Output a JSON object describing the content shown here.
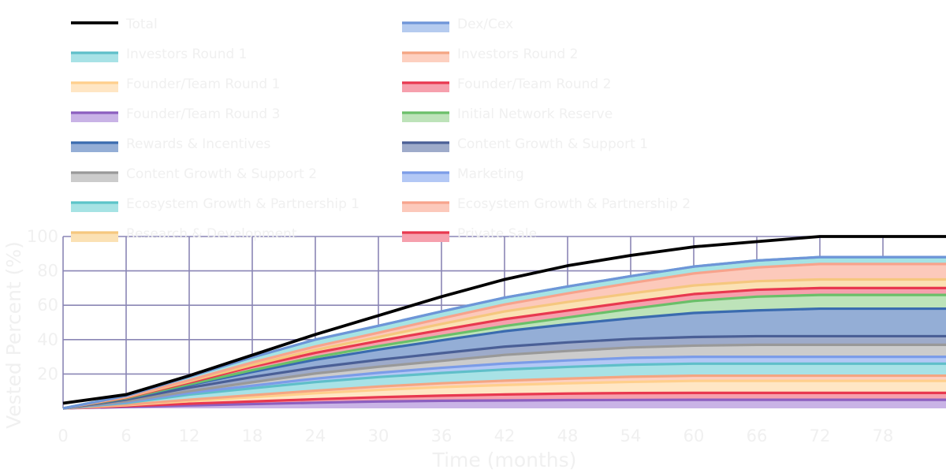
{
  "chart_data": {
    "type": "area",
    "stacked": true,
    "title": "",
    "xlabel": "Time (months)",
    "ylabel": "Vested Percent (%)",
    "xlim": [
      0,
      84
    ],
    "ylim": [
      0,
      100
    ],
    "x_ticks": [
      0,
      6,
      12,
      18,
      24,
      30,
      36,
      42,
      48,
      54,
      60,
      66,
      72,
      78
    ],
    "y_ticks": [
      20,
      40,
      60,
      80,
      100
    ],
    "grid": true,
    "grid_color": "#8a86b5",
    "legend_placement": "top, two columns",
    "x": [
      0,
      6,
      12,
      18,
      24,
      30,
      36,
      42,
      48,
      54,
      60,
      66,
      72,
      78,
      84
    ],
    "total": {
      "name": "Total",
      "color": "#000000",
      "values": [
        3,
        8,
        19,
        31,
        43,
        54,
        65,
        75,
        83,
        89,
        94,
        97,
        100,
        100,
        100
      ]
    },
    "series": [
      {
        "name": "Founder/Team Round 3",
        "line": "#8c5fbf",
        "fill": "#c9b3e6",
        "values": [
          0,
          0.8,
          1.7,
          2.5,
          3.3,
          4,
          4.4,
          4.6,
          4.8,
          4.9,
          5,
          5,
          5,
          5,
          5
        ]
      },
      {
        "name": "Founder/Team Round 2",
        "line": "#e8384f",
        "fill": "#f6a0ad",
        "values": [
          0,
          0.5,
          1,
          1.5,
          2,
          2.5,
          3,
          3.5,
          3.8,
          4,
          4,
          4,
          4,
          4,
          4
        ]
      },
      {
        "name": "Founder/Team Round 1",
        "line": "#ffcf8c",
        "fill": "#ffe6c4",
        "values": [
          0,
          0.5,
          1.5,
          2.5,
          3.5,
          4.2,
          5,
          5.5,
          6,
          6.5,
          7,
          7,
          7,
          7,
          7
        ]
      },
      {
        "name": "Investors Round 2",
        "line": "#f4a582",
        "fill": "#fdd0c0",
        "values": [
          0,
          0.3,
          0.8,
          1.2,
          1.5,
          2,
          2.2,
          2.5,
          2.7,
          3,
          3,
          3,
          3,
          3,
          3
        ]
      },
      {
        "name": "Investors Round 1",
        "line": "#5fbfc9",
        "fill": "#a8e2e6",
        "values": [
          0,
          1,
          3,
          4,
          5,
          5.5,
          6,
          6.5,
          6.8,
          7,
          7,
          7,
          7,
          7,
          7
        ]
      },
      {
        "name": "Marketing",
        "line": "#7b9ce8",
        "fill": "#b3c8f5",
        "values": [
          0,
          0.5,
          1,
          1.5,
          2,
          2.5,
          3,
          3.5,
          3.8,
          4,
          4,
          4,
          4,
          4,
          4
        ]
      },
      {
        "name": "Content Growth & Support 2",
        "line": "#999999",
        "fill": "#cccccc",
        "values": [
          0,
          0.5,
          1,
          2,
          3,
          3.5,
          4,
          5,
          5.5,
          6,
          6.5,
          7,
          7,
          7,
          7
        ]
      },
      {
        "name": "Content Growth & Support 1",
        "line": "#4a5f96",
        "fill": "#9eabca",
        "values": [
          0,
          1,
          2,
          3,
          3.5,
          4,
          4.5,
          4.8,
          5,
          5,
          5,
          5,
          5,
          5,
          5
        ]
      },
      {
        "name": "Rewards & Incentives",
        "line": "#3a6baf",
        "fill": "#94aed6",
        "values": [
          0,
          0.6,
          1.5,
          3,
          4.5,
          6,
          7.5,
          9,
          10.5,
          12,
          14,
          15,
          16,
          16,
          16
        ]
      },
      {
        "name": "Initial Network Reserve",
        "line": "#6abf69",
        "fill": "#bde3b9",
        "values": [
          0,
          0.2,
          0.5,
          1,
          1.5,
          2,
          2.5,
          3,
          4,
          5.5,
          7,
          8,
          8,
          8,
          8
        ]
      },
      {
        "name": "Private Sale",
        "line": "#e8384f",
        "fill": "#f6a0ad",
        "values": [
          0,
          0.3,
          1,
          2,
          2.5,
          3,
          3.5,
          4,
          4,
          4,
          4,
          4,
          4,
          4,
          4
        ]
      },
      {
        "name": "Research & Development",
        "line": "#f5c77e",
        "fill": "#fbe1b4",
        "values": [
          0,
          0.3,
          0.7,
          1,
          1.7,
          2.3,
          3.5,
          4.5,
          5,
          5,
          5,
          5,
          5,
          5,
          5
        ]
      },
      {
        "name": "Ecosystem Growth & Partnership 2",
        "line": "#f7a38c",
        "fill": "#fcc9bb",
        "values": [
          0,
          0.3,
          0.7,
          1.5,
          2,
          2.5,
          3.3,
          4,
          5,
          6,
          7,
          8,
          9,
          9,
          9
        ]
      },
      {
        "name": "Ecosystem Growth & Partnership 1",
        "line": "#5bc4c8",
        "fill": "#a6e3e4",
        "values": [
          0,
          0.5,
          2,
          3,
          4,
          4,
          4,
          4,
          4,
          4,
          4,
          4,
          4,
          4,
          4
        ]
      },
      {
        "name": "Dex/Cex",
        "line": "#6e95d8",
        "fill": "#b5cbef",
        "values": [
          0,
          0,
          0,
          0,
          0,
          0,
          0,
          0,
          0,
          0,
          0,
          0,
          0,
          0,
          0
        ]
      }
    ],
    "legend": [
      {
        "name": "Total",
        "line": "#000000",
        "fill": ""
      },
      {
        "name": "Dex/Cex",
        "line": "#6e95d8",
        "fill": "#b5cbef"
      },
      {
        "name": "Investors Round 1",
        "line": "#5fbfc9",
        "fill": "#a8e2e6"
      },
      {
        "name": "Investors Round 2",
        "line": "#f4a582",
        "fill": "#fdd0c0"
      },
      {
        "name": "Founder/Team Round 1",
        "line": "#ffcf8c",
        "fill": "#ffe6c4"
      },
      {
        "name": "Founder/Team Round 2",
        "line": "#e8384f",
        "fill": "#f6a0ad"
      },
      {
        "name": "Founder/Team Round 3",
        "line": "#8c5fbf",
        "fill": "#c9b3e6"
      },
      {
        "name": "Initial Network Reserve",
        "line": "#6abf69",
        "fill": "#bde3b9"
      },
      {
        "name": "Rewards & Incentives",
        "line": "#3a6baf",
        "fill": "#94aed6"
      },
      {
        "name": "Content Growth & Support 1",
        "line": "#4a5f96",
        "fill": "#9eabca"
      },
      {
        "name": "Content Growth & Support 2",
        "line": "#999999",
        "fill": "#cccccc"
      },
      {
        "name": "Marketing",
        "line": "#7b9ce8",
        "fill": "#b3c8f5"
      },
      {
        "name": "Ecosystem Growth & Partnership 1",
        "line": "#5bc4c8",
        "fill": "#a6e3e4"
      },
      {
        "name": "Ecosystem Growth & Partnership 2",
        "line": "#f7a38c",
        "fill": "#fcc9bb"
      },
      {
        "name": "Research & Development",
        "line": "#f5c77e",
        "fill": "#fbe1b4"
      },
      {
        "name": "Private Sale",
        "line": "#e8384f",
        "fill": "#f6a0ad"
      }
    ]
  }
}
